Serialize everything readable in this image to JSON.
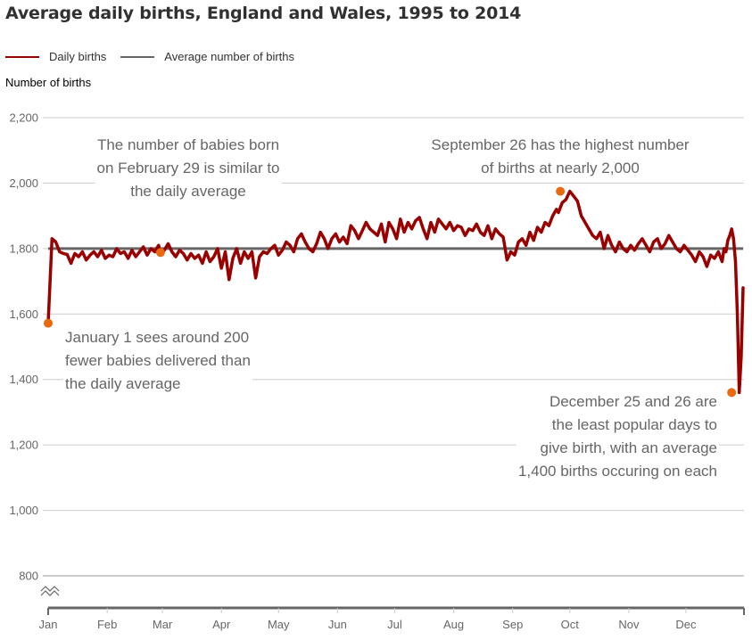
{
  "title": "Average daily births, England and Wales, 1995 to 2014",
  "legend": [
    {
      "label": "Daily births",
      "color": "#990000"
    },
    {
      "label": "Average number of births",
      "color": "#666666"
    }
  ],
  "y_axis_title": "Number of births",
  "chart_data": {
    "type": "line",
    "title": "Average daily births, England and Wales, 1995 to 2014",
    "xlabel": "",
    "ylabel": "Number of births",
    "ylim": [
      800,
      2200
    ],
    "y_axis_break": true,
    "yticks": [
      800,
      1000,
      1200,
      1400,
      1600,
      1800,
      2000,
      2200
    ],
    "ytick_labels": [
      "800",
      "1,000",
      "1,200",
      "1,400",
      "1,600",
      "1,800",
      "2,000",
      "2,200"
    ],
    "xlim_day_of_year": [
      1,
      366
    ],
    "xticks_day_of_year": [
      1,
      32,
      61,
      92,
      122,
      153,
      183,
      214,
      245,
      275,
      306,
      336
    ],
    "xtick_labels": [
      "Jan",
      "Feb",
      "Mar",
      "Apr",
      "May",
      "Jun",
      "Jul",
      "Aug",
      "Sep",
      "Oct",
      "Nov",
      "Dec"
    ],
    "grid": true,
    "legend_position": "top-left",
    "series": [
      {
        "name": "Daily births",
        "color": "#990000",
        "x_day_of_year": [
          1,
          3,
          5,
          7,
          9,
          11,
          13,
          15,
          17,
          19,
          21,
          23,
          25,
          27,
          29,
          31,
          33,
          35,
          37,
          39,
          41,
          43,
          45,
          47,
          49,
          51,
          53,
          55,
          57,
          59,
          60,
          62,
          64,
          66,
          68,
          70,
          72,
          74,
          76,
          78,
          80,
          82,
          84,
          86,
          88,
          90,
          92,
          94,
          96,
          98,
          100,
          102,
          104,
          106,
          108,
          110,
          112,
          114,
          116,
          118,
          120,
          122,
          124,
          126,
          128,
          130,
          132,
          134,
          136,
          138,
          140,
          142,
          144,
          146,
          148,
          150,
          152,
          154,
          156,
          158,
          160,
          162,
          164,
          166,
          168,
          170,
          172,
          174,
          176,
          178,
          180,
          182,
          184,
          186,
          188,
          190,
          192,
          194,
          196,
          198,
          200,
          202,
          204,
          206,
          208,
          210,
          212,
          214,
          216,
          218,
          220,
          222,
          224,
          226,
          228,
          230,
          232,
          234,
          236,
          238,
          240,
          242,
          244,
          246,
          248,
          250,
          252,
          254,
          256,
          258,
          260,
          262,
          264,
          266,
          268,
          269,
          271,
          273,
          275,
          277,
          279,
          281,
          283,
          285,
          287,
          289,
          291,
          293,
          295,
          297,
          299,
          301,
          303,
          305,
          307,
          309,
          311,
          313,
          315,
          317,
          319,
          321,
          323,
          325,
          327,
          329,
          331,
          333,
          335,
          337,
          339,
          341,
          343,
          345,
          347,
          349,
          351,
          353,
          355,
          356,
          357,
          358,
          359,
          360,
          361,
          362,
          363,
          364,
          365,
          366
        ],
        "values": [
          1572,
          1830,
          1820,
          1790,
          1785,
          1782,
          1755,
          1785,
          1775,
          1790,
          1765,
          1780,
          1790,
          1775,
          1795,
          1770,
          1780,
          1775,
          1800,
          1785,
          1790,
          1770,
          1795,
          1775,
          1790,
          1805,
          1780,
          1800,
          1790,
          1810,
          1788,
          1795,
          1815,
          1790,
          1775,
          1795,
          1785,
          1765,
          1785,
          1770,
          1780,
          1755,
          1790,
          1760,
          1775,
          1800,
          1740,
          1790,
          1705,
          1770,
          1800,
          1755,
          1790,
          1770,
          1790,
          1710,
          1775,
          1790,
          1785,
          1800,
          1810,
          1780,
          1795,
          1820,
          1810,
          1790,
          1830,
          1845,
          1820,
          1800,
          1790,
          1815,
          1850,
          1830,
          1800,
          1830,
          1845,
          1820,
          1835,
          1815,
          1870,
          1855,
          1830,
          1855,
          1880,
          1860,
          1850,
          1840,
          1875,
          1820,
          1880,
          1860,
          1830,
          1890,
          1850,
          1880,
          1860,
          1885,
          1895,
          1860,
          1830,
          1880,
          1850,
          1890,
          1875,
          1860,
          1880,
          1855,
          1870,
          1865,
          1840,
          1860,
          1855,
          1875,
          1850,
          1840,
          1870,
          1830,
          1860,
          1845,
          1835,
          1765,
          1790,
          1780,
          1820,
          1830,
          1810,
          1850,
          1825,
          1865,
          1850,
          1880,
          1870,
          1900,
          1920,
          1910,
          1940,
          1950,
          1975,
          1960,
          1945,
          1900,
          1880,
          1860,
          1840,
          1830,
          1850,
          1800,
          1840,
          1810,
          1790,
          1820,
          1800,
          1790,
          1810,
          1795,
          1815,
          1830,
          1810,
          1790,
          1820,
          1830,
          1800,
          1815,
          1840,
          1820,
          1800,
          1790,
          1810,
          1795,
          1780,
          1760,
          1790,
          1775,
          1745,
          1780,
          1770,
          1790,
          1760,
          1800,
          1790,
          1825,
          1840,
          1860,
          1830,
          1760,
          1600,
          1360,
          1470,
          1680,
          1730,
          1860,
          1870,
          1840
        ],
        "line_width_note": "thick"
      },
      {
        "name": "Average number of births",
        "color": "#666666",
        "constant_value": 1800
      }
    ],
    "highlighted_points": [
      {
        "label": "January 1",
        "day_of_year": 1,
        "value": 1572
      },
      {
        "label": "February 29",
        "day_of_year": 60,
        "value": 1788
      },
      {
        "label": "September 26",
        "day_of_year": 270,
        "value": 1975
      },
      {
        "label": "December 25",
        "day_of_year": 360,
        "value": 1360
      }
    ],
    "annotations": [
      {
        "id": "feb29",
        "lines": [
          "The number of babies born",
          "on February 29 is similar to",
          "the daily average"
        ],
        "align": "center"
      },
      {
        "id": "sep26",
        "lines": [
          "September 26 has the highest number",
          "of births at nearly 2,000"
        ],
        "align": "center"
      },
      {
        "id": "jan1",
        "lines": [
          "January 1 sees around 200",
          "fewer babies delivered than",
          "the daily average"
        ],
        "align": "left"
      },
      {
        "id": "dec25",
        "lines": [
          "December 25 and 26 are",
          "the least popular days to",
          "give birth, with an average",
          "1,400 births occuring on each"
        ],
        "align": "right"
      }
    ],
    "colors": {
      "series": "#990000",
      "average": "#666666",
      "highlight": "#e8690e",
      "grid": "#cccccc",
      "axis": "#666666",
      "text": "#666666"
    }
  }
}
